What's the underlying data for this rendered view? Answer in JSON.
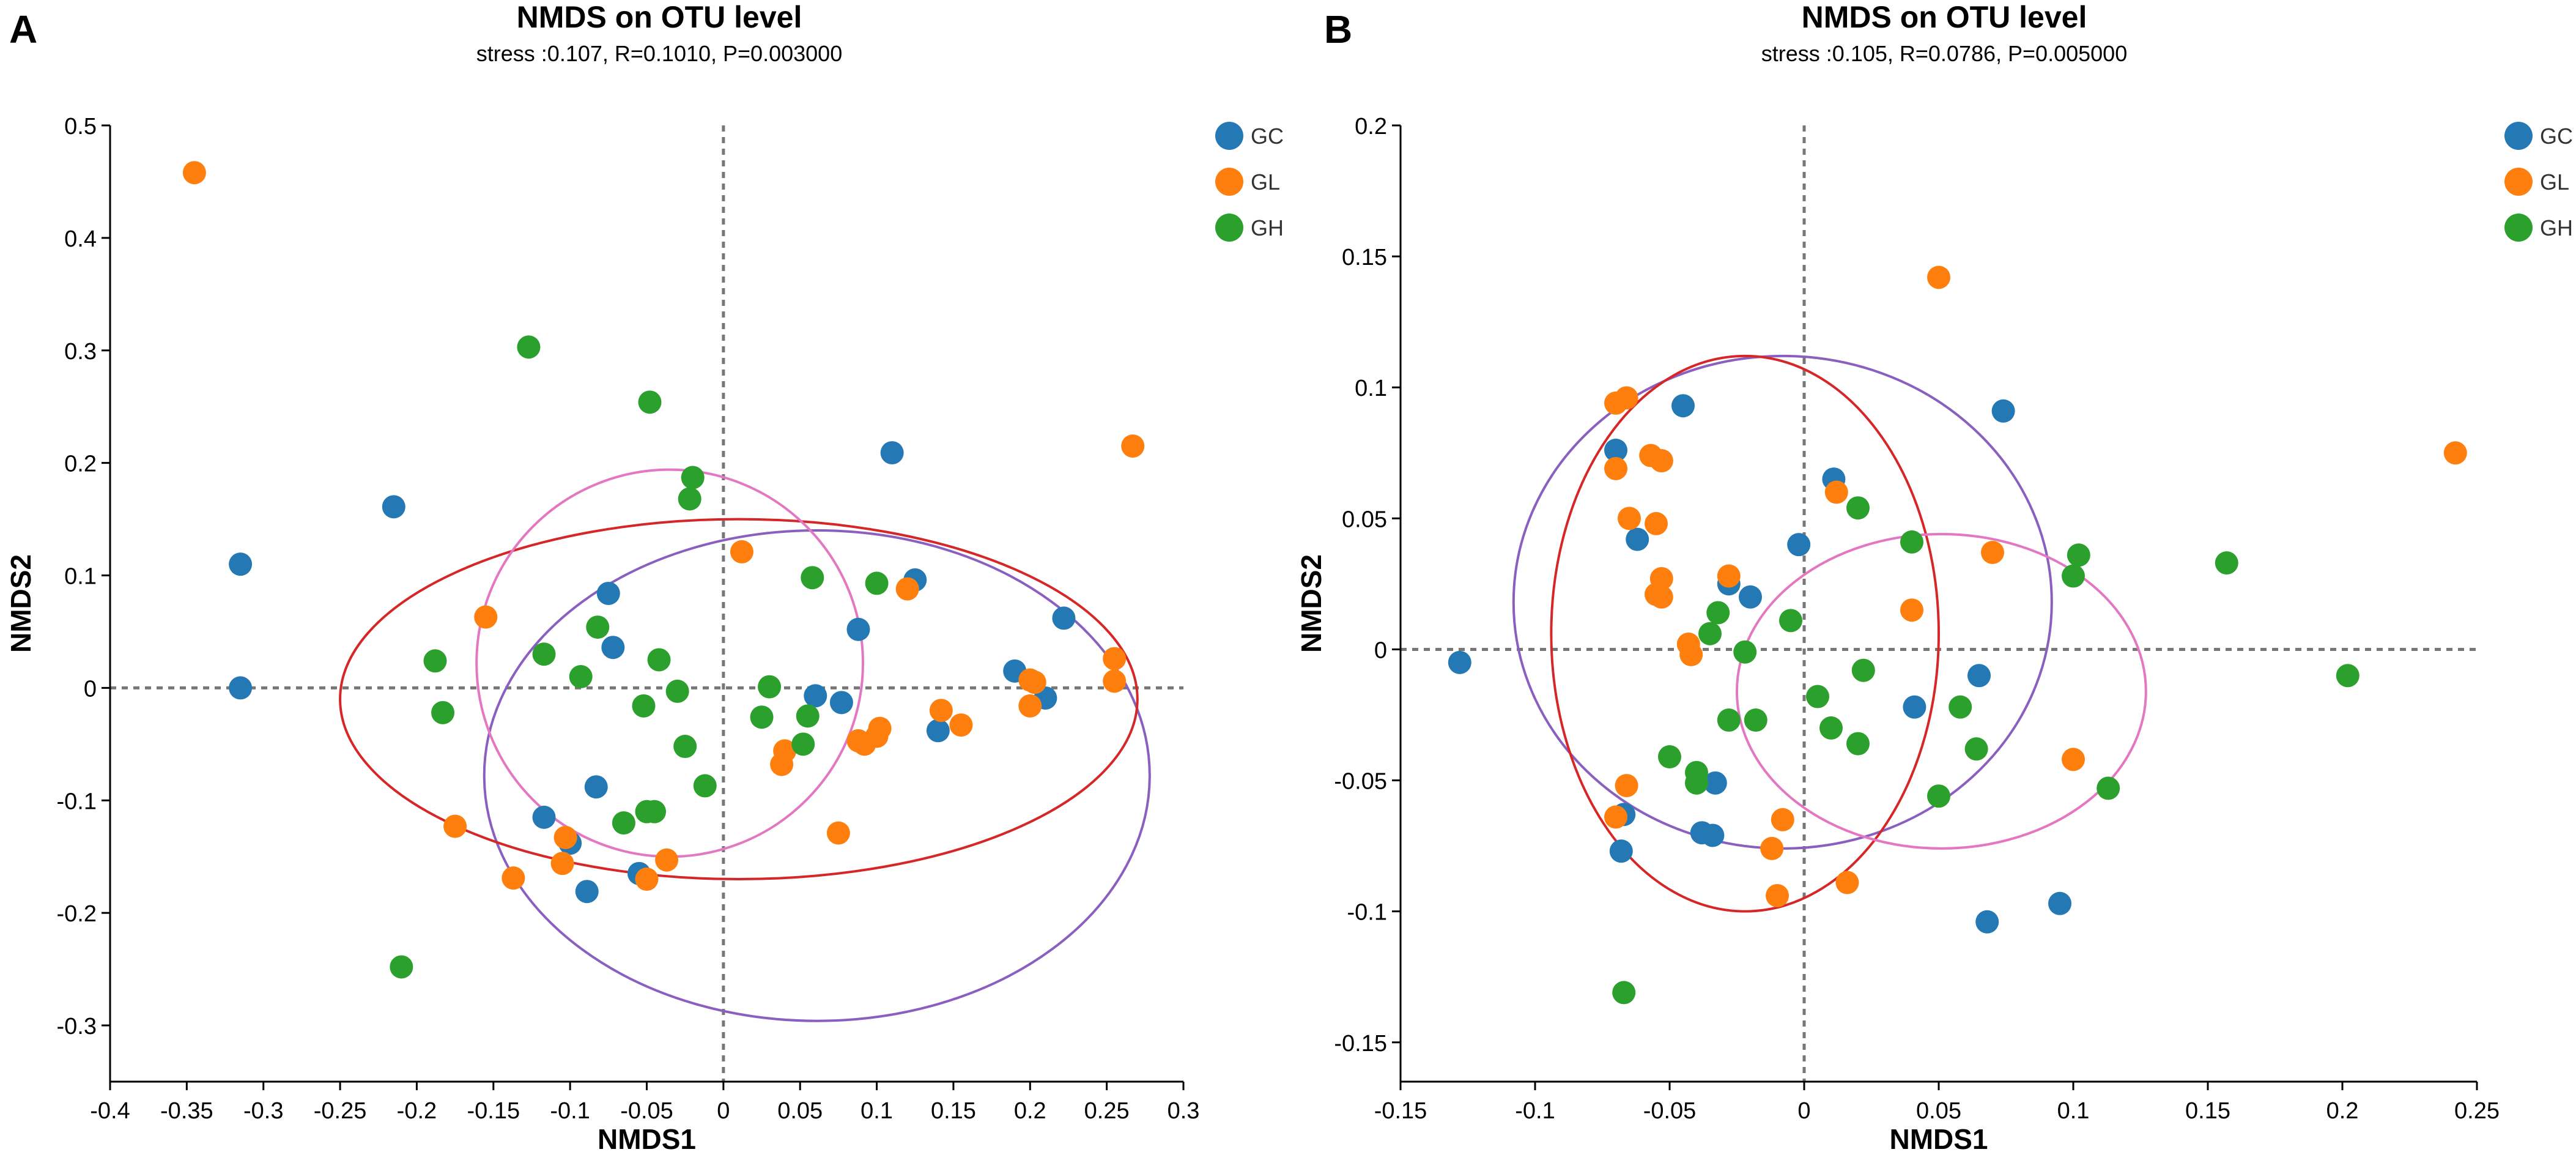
{
  "colors": {
    "GC": "#2479b5",
    "GL": "#ff7f0e",
    "GH": "#2ca02c",
    "ellipse_GC": "#8a5fbf",
    "ellipse_GL": "#d62728",
    "ellipse_GH": "#e377c2",
    "axis": "#000000",
    "zero_line": "#777777"
  },
  "chart_data": [
    {
      "type": "scatter",
      "panel": "A",
      "title": "NMDS on OTU level",
      "subtitle": "stress :0.107, R=0.1010, P=0.003000",
      "xlabel": "NMDS1",
      "ylabel": "NMDS2",
      "xlim": [
        -0.4,
        0.3
      ],
      "ylim": [
        -0.35,
        0.5
      ],
      "xticks": [
        -0.4,
        -0.35,
        -0.3,
        -0.25,
        -0.2,
        -0.15,
        -0.1,
        -0.05,
        0,
        0.05,
        0.1,
        0.15,
        0.2,
        0.25,
        0.3
      ],
      "xtick_labels": [
        "-0.4",
        "-0.35",
        "-0.3",
        "-0.25",
        "-0.2",
        "-0.15",
        "-0.1",
        "-0.05",
        "0",
        "0.05",
        "0.1",
        "0.15",
        "0.2",
        "0.25",
        "0.3"
      ],
      "yticks": [
        -0.3,
        -0.2,
        -0.1,
        0,
        0.1,
        0.2,
        0.3,
        0.4,
        0.5
      ],
      "ytick_labels": [
        "-0.3",
        "-0.2",
        "-0.1",
        "0",
        "0.1",
        "0.2",
        "0.3",
        "0.4",
        "0.5"
      ],
      "legend": [
        "GC",
        "GL",
        "GH"
      ],
      "legend_position": "right",
      "series": [
        {
          "name": "GC",
          "points": [
            [
              -0.315,
              0.11
            ],
            [
              -0.315,
              0.0
            ],
            [
              -0.215,
              0.161
            ],
            [
              -0.075,
              0.084
            ],
            [
              -0.072,
              0.036
            ],
            [
              -0.083,
              -0.088
            ],
            [
              -0.117,
              -0.115
            ],
            [
              -0.1,
              -0.138
            ],
            [
              -0.089,
              -0.181
            ],
            [
              -0.055,
              -0.165
            ],
            [
              0.06,
              -0.007
            ],
            [
              0.077,
              -0.013
            ],
            [
              0.088,
              0.052
            ],
            [
              0.11,
              0.209
            ],
            [
              0.125,
              0.096
            ],
            [
              0.14,
              -0.038
            ],
            [
              0.19,
              0.015
            ],
            [
              0.21,
              -0.009
            ],
            [
              0.222,
              0.062
            ]
          ]
        },
        {
          "name": "GL",
          "points": [
            [
              -0.345,
              0.458
            ],
            [
              -0.155,
              0.063
            ],
            [
              -0.175,
              -0.123
            ],
            [
              -0.137,
              -0.169
            ],
            [
              -0.103,
              -0.133
            ],
            [
              -0.105,
              -0.156
            ],
            [
              -0.05,
              -0.17
            ],
            [
              -0.037,
              -0.153
            ],
            [
              0.012,
              0.121
            ],
            [
              0.038,
              -0.068
            ],
            [
              0.04,
              -0.056
            ],
            [
              0.075,
              -0.129
            ],
            [
              0.088,
              -0.047
            ],
            [
              0.092,
              -0.05
            ],
            [
              0.1,
              -0.043
            ],
            [
              0.102,
              -0.036
            ],
            [
              0.12,
              0.088
            ],
            [
              0.142,
              -0.02
            ],
            [
              0.155,
              -0.033
            ],
            [
              0.2,
              0.007
            ],
            [
              0.2,
              -0.016
            ],
            [
              0.203,
              0.005
            ],
            [
              0.255,
              0.026
            ],
            [
              0.255,
              0.006
            ],
            [
              0.267,
              0.215
            ]
          ]
        },
        {
          "name": "GH",
          "points": [
            [
              -0.127,
              0.303
            ],
            [
              -0.048,
              0.254
            ],
            [
              -0.02,
              0.187
            ],
            [
              -0.022,
              0.168
            ],
            [
              -0.188,
              0.024
            ],
            [
              -0.183,
              -0.022
            ],
            [
              -0.117,
              0.03
            ],
            [
              -0.082,
              0.054
            ],
            [
              -0.093,
              0.01
            ],
            [
              -0.052,
              -0.016
            ],
            [
              -0.042,
              0.025
            ],
            [
              -0.03,
              -0.003
            ],
            [
              -0.045,
              -0.11
            ],
            [
              -0.065,
              -0.12
            ],
            [
              -0.05,
              -0.11
            ],
            [
              -0.025,
              -0.052
            ],
            [
              -0.012,
              -0.087
            ],
            [
              0.03,
              0.001
            ],
            [
              0.025,
              -0.026
            ],
            [
              0.055,
              -0.025
            ],
            [
              0.052,
              -0.05
            ],
            [
              0.058,
              0.098
            ],
            [
              0.1,
              0.093
            ],
            [
              -0.21,
              -0.248
            ]
          ]
        }
      ],
      "ellipses": [
        {
          "group": "GC",
          "cx": 0.061,
          "cy": -0.078,
          "rx": 0.217,
          "ry": 0.218
        },
        {
          "group": "GL",
          "cx": 0.01,
          "cy": -0.01,
          "rx": 0.26,
          "ry": 0.16
        },
        {
          "group": "GH",
          "cx": -0.035,
          "cy": 0.022,
          "rx": 0.126,
          "ry": 0.172
        }
      ]
    },
    {
      "type": "scatter",
      "panel": "B",
      "title": "NMDS on OTU level",
      "subtitle": "stress :0.105, R=0.0786, P=0.005000",
      "xlabel": "NMDS1",
      "ylabel": "NMDS2",
      "xlim": [
        -0.15,
        0.25
      ],
      "ylim": [
        -0.165,
        0.2
      ],
      "xticks": [
        -0.15,
        -0.1,
        -0.05,
        0,
        0.05,
        0.1,
        0.15,
        0.2,
        0.25
      ],
      "xtick_labels": [
        "-0.15",
        "-0.1",
        "-0.05",
        "0",
        "0.05",
        "0.1",
        "0.15",
        "0.2",
        "0.25"
      ],
      "yticks": [
        -0.15,
        -0.1,
        -0.05,
        0,
        0.05,
        0.1,
        0.15,
        0.2
      ],
      "ytick_labels": [
        "-0.15",
        "-0.1",
        "-0.05",
        "0",
        "0.05",
        "0.1",
        "0.15",
        "0.2"
      ],
      "legend": [
        "GC",
        "GL",
        "GH"
      ],
      "legend_position": "right",
      "series": [
        {
          "name": "GC",
          "points": [
            [
              -0.128,
              -0.005
            ],
            [
              -0.07,
              0.076
            ],
            [
              -0.053,
              0.072
            ],
            [
              -0.062,
              0.042
            ],
            [
              -0.045,
              0.093
            ],
            [
              -0.067,
              -0.063
            ],
            [
              -0.068,
              -0.077
            ],
            [
              -0.038,
              -0.07
            ],
            [
              -0.034,
              -0.071
            ],
            [
              -0.033,
              -0.051
            ],
            [
              -0.028,
              0.025
            ],
            [
              -0.02,
              0.02
            ],
            [
              -0.002,
              0.04
            ],
            [
              0.011,
              0.065
            ],
            [
              0.041,
              -0.022
            ],
            [
              0.065,
              -0.01
            ],
            [
              0.074,
              0.091
            ],
            [
              0.095,
              -0.097
            ],
            [
              0.068,
              -0.104
            ]
          ]
        },
        {
          "name": "GL",
          "points": [
            [
              -0.07,
              0.094
            ],
            [
              -0.066,
              0.096
            ],
            [
              -0.07,
              0.069
            ],
            [
              -0.065,
              0.05
            ],
            [
              -0.057,
              0.074
            ],
            [
              -0.053,
              0.072
            ],
            [
              -0.055,
              0.048
            ],
            [
              -0.053,
              0.027
            ],
            [
              -0.053,
              0.02
            ],
            [
              -0.055,
              0.021
            ],
            [
              -0.043,
              0.002
            ],
            [
              -0.042,
              -0.002
            ],
            [
              -0.028,
              0.028
            ],
            [
              -0.066,
              -0.052
            ],
            [
              -0.07,
              -0.064
            ],
            [
              -0.012,
              -0.076
            ],
            [
              -0.01,
              -0.094
            ],
            [
              -0.008,
              -0.065
            ],
            [
              0.012,
              0.06
            ],
            [
              0.016,
              -0.089
            ],
            [
              0.04,
              0.015
            ],
            [
              0.05,
              0.142
            ],
            [
              0.07,
              0.037
            ],
            [
              0.1,
              -0.042
            ],
            [
              0.242,
              0.075
            ]
          ]
        },
        {
          "name": "GH",
          "points": [
            [
              -0.035,
              0.006
            ],
            [
              -0.032,
              0.014
            ],
            [
              -0.022,
              -0.001
            ],
            [
              -0.005,
              0.011
            ],
            [
              -0.05,
              -0.041
            ],
            [
              -0.04,
              -0.047
            ],
            [
              -0.04,
              -0.051
            ],
            [
              -0.028,
              -0.027
            ],
            [
              -0.018,
              -0.027
            ],
            [
              0.005,
              -0.018
            ],
            [
              0.01,
              -0.03
            ],
            [
              0.02,
              -0.036
            ],
            [
              0.022,
              -0.008
            ],
            [
              0.02,
              0.054
            ],
            [
              0.04,
              0.041
            ],
            [
              0.058,
              -0.022
            ],
            [
              0.064,
              -0.038
            ],
            [
              0.05,
              -0.056
            ],
            [
              0.1,
              0.028
            ],
            [
              0.102,
              0.036
            ],
            [
              0.113,
              -0.053
            ],
            [
              0.157,
              0.033
            ],
            [
              0.202,
              -0.01
            ],
            [
              -0.067,
              -0.131
            ]
          ]
        }
      ],
      "ellipses": [
        {
          "group": "GC",
          "cx": -0.008,
          "cy": 0.018,
          "rx": 0.1,
          "ry": 0.094
        },
        {
          "group": "GL",
          "cx": -0.022,
          "cy": 0.006,
          "rx": 0.072,
          "ry": 0.106
        },
        {
          "group": "GH",
          "cx": 0.051,
          "cy": -0.016,
          "rx": 0.076,
          "ry": 0.06
        }
      ]
    }
  ]
}
